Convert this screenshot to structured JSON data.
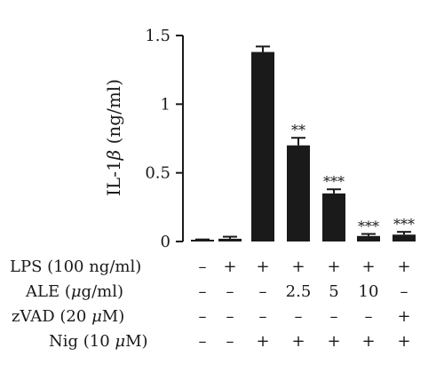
{
  "chart_data": {
    "type": "bar",
    "ylabel_prefix": "IL-1",
    "ylabel_symbol": "β",
    "ylabel_suffix": " (ng/ml)",
    "ylim": [
      0,
      1.5
    ],
    "yticks": [
      0,
      0.5,
      1,
      1.5
    ],
    "ytick_labels": [
      "0",
      "0.5",
      "1",
      "1.5"
    ],
    "values": [
      0.01,
      0.02,
      1.38,
      0.7,
      0.35,
      0.04,
      0.05
    ],
    "errors": [
      0.005,
      0.015,
      0.04,
      0.055,
      0.03,
      0.015,
      0.02
    ],
    "significance": [
      "",
      "",
      "",
      "**",
      "***",
      "***",
      "***"
    ],
    "colors": {
      "bar": "#1a1a1a",
      "axis": "#1a1a1a"
    },
    "conditions": [
      {
        "label": "LPS (100 ng/ml)",
        "values": [
          "–",
          "+",
          "+",
          "+",
          "+",
          "+",
          "+"
        ]
      },
      {
        "label_prefix": "ALE (",
        "label_symbol": "μ",
        "label_suffix": "g/ml)",
        "values": [
          "–",
          "–",
          "–",
          "2.5",
          "5",
          "10",
          "–"
        ]
      },
      {
        "label_prefix": "zVAD (20 ",
        "label_symbol": "μ",
        "label_suffix": "M)",
        "values": [
          "–",
          "–",
          "–",
          "–",
          "–",
          "–",
          "+"
        ]
      },
      {
        "label_prefix": "Nig (10 ",
        "label_symbol": "μ",
        "label_suffix": "M)",
        "values": [
          "–",
          "–",
          "+",
          "+",
          "+",
          "+",
          "+"
        ]
      }
    ]
  }
}
